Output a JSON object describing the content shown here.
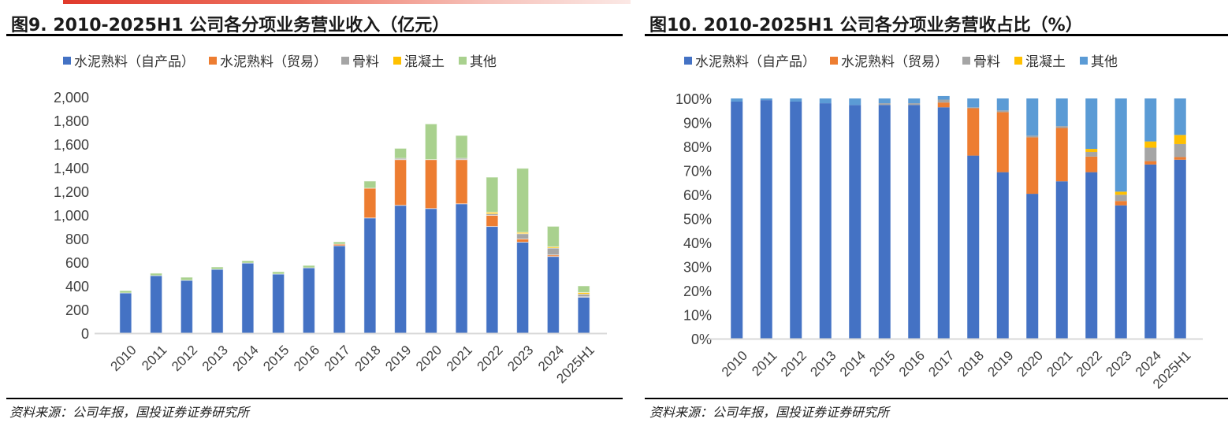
{
  "colors": {
    "cement_self": "#4472C4",
    "cement_trade": "#ED7D31",
    "aggregate": "#A5A5A5",
    "concrete": "#FFC000",
    "other_left": "#A9D18E",
    "other_right": "#5B9BD5",
    "accent_bar": "#E0392B"
  },
  "left": {
    "title": "图9. 2010-2025H1 公司各分项业务营业收入（亿元）",
    "source": "资料来源：公司年报，国投证券证券研究所"
  },
  "right": {
    "title": "图10. 2010-2025H1 公司各分项业务营收占比（%）",
    "source": "资料来源：公司年报，国投证券证券研究所"
  },
  "chart_data": [
    {
      "type": "bar",
      "stacked": true,
      "title": "图9. 2010-2025H1 公司各分项业务营业收入（亿元）",
      "xlabel": "",
      "ylabel": "",
      "ylim": [
        0,
        2000
      ],
      "yticks": [
        0,
        200,
        400,
        600,
        800,
        1000,
        1200,
        1400,
        1600,
        1800,
        2000
      ],
      "ytick_labels": [
        "0",
        "200",
        "400",
        "600",
        "800",
        "1,000",
        "1,200",
        "1,400",
        "1,600",
        "1,800",
        "2,000"
      ],
      "grid": false,
      "legend_position": "top",
      "categories": [
        "2010",
        "2011",
        "2012",
        "2013",
        "2014",
        "2015",
        "2016",
        "2017",
        "2018",
        "2019",
        "2020",
        "2021",
        "2022",
        "2023",
        "2024",
        "2025H1"
      ],
      "series": [
        {
          "name": "水泥熟料（自产品）",
          "color_key": "cement_self",
          "values": [
            340,
            487,
            447,
            540,
            593,
            500,
            553,
            740,
            975,
            1082,
            1055,
            1095,
            903,
            770,
            649,
            305
          ]
        },
        {
          "name": "水泥熟料（贸易）",
          "color_key": "cement_trade",
          "values": [
            0,
            0,
            0,
            0,
            0,
            0,
            0,
            13,
            252,
            387,
            414,
            374,
            94,
            27,
            13,
            3
          ]
        },
        {
          "name": "骨料",
          "color_key": "aggregate",
          "values": [
            0,
            0,
            0,
            0,
            0,
            0,
            0,
            0,
            0,
            11,
            0,
            11,
            13,
            45,
            58,
            23
          ]
        },
        {
          "name": "混凝土",
          "color_key": "concrete",
          "values": [
            0,
            0,
            0,
            0,
            0,
            0,
            0,
            0,
            0,
            0,
            0,
            0,
            14,
            11,
            11,
            13
          ]
        },
        {
          "name": "其他",
          "color_key": "other_left",
          "values": [
            20,
            20,
            26,
            20,
            20,
            20,
            20,
            20,
            60,
            84,
            302,
            193,
            296,
            542,
            173,
            56
          ]
        }
      ]
    },
    {
      "type": "bar",
      "stacked": true,
      "percent": true,
      "title": "图10. 2010-2025H1 公司各分项业务营收占比（%）",
      "xlabel": "",
      "ylabel": "",
      "ylim": [
        0,
        100
      ],
      "yticks": [
        0,
        10,
        20,
        30,
        40,
        50,
        60,
        70,
        80,
        90,
        100
      ],
      "ytick_labels": [
        "0%",
        "10%",
        "20%",
        "30%",
        "40%",
        "50%",
        "60%",
        "70%",
        "80%",
        "90%",
        "100%"
      ],
      "grid": false,
      "legend_position": "top",
      "categories": [
        "2010",
        "2011",
        "2012",
        "2013",
        "2014",
        "2015",
        "2016",
        "2017",
        "2018",
        "2019",
        "2020",
        "2021",
        "2022",
        "2023",
        "2024",
        "2025H1"
      ],
      "series": [
        {
          "name": "水泥熟料（自产品）",
          "color_key": "cement_self",
          "values": [
            98.7,
            99.3,
            98.7,
            98.0,
            97.3,
            97.3,
            97.3,
            96.3,
            76.2,
            69.3,
            60.3,
            65.5,
            69.3,
            55.5,
            72.5,
            74.5
          ]
        },
        {
          "name": "水泥熟料（贸易）",
          "color_key": "cement_trade",
          "values": [
            0,
            0,
            0,
            0,
            0,
            0,
            0,
            2.0,
            19.7,
            25.0,
            23.5,
            22.2,
            6.5,
            1.8,
            1.4,
            1.1
          ]
        },
        {
          "name": "骨料",
          "color_key": "aggregate",
          "values": [
            0,
            0,
            0,
            0,
            0,
            0.7,
            0.7,
            1.2,
            0.4,
            0.7,
            0.7,
            0.8,
            1.9,
            2.6,
            5.6,
            5.4
          ]
        },
        {
          "name": "混凝土",
          "color_key": "concrete",
          "values": [
            0,
            0,
            0,
            0,
            0,
            0,
            0,
            0,
            0,
            0,
            0,
            0,
            1.3,
            1.3,
            2.6,
            3.8
          ]
        },
        {
          "name": "其他",
          "color_key": "other_right",
          "values": [
            1.3,
            0.7,
            1.3,
            2.0,
            2.7,
            2.0,
            2.0,
            1.5,
            3.7,
            5.0,
            15.5,
            11.5,
            21.0,
            38.8,
            17.9,
            15.2
          ]
        }
      ]
    }
  ]
}
